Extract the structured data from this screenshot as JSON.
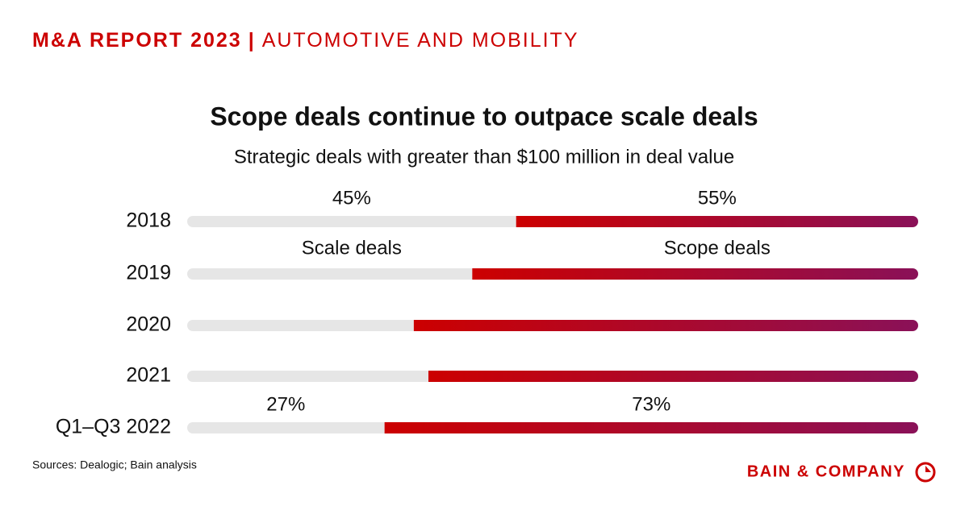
{
  "header": {
    "report": "M&A REPORT 2023",
    "separator": "|",
    "topic": "AUTOMOTIVE AND MOBILITY"
  },
  "footer": {
    "brand": "BAIN & COMPANY"
  },
  "chart_data": {
    "type": "stacked-bar-100",
    "title": "Scope deals continue to outpace scale deals",
    "subtitle": "Strategic deals with greater than $100 million in deal value",
    "source": "Sources: Dealogic; Bain analysis",
    "categories": [
      "2018",
      "2019",
      "2020",
      "2021",
      "Q1–Q3 2022"
    ],
    "xlim": [
      0,
      100
    ],
    "series": [
      {
        "name": "Scale deals",
        "color": "#e6e6e6",
        "values": [
          45,
          39,
          31,
          33,
          27
        ],
        "value_labels": [
          "45%",
          null,
          null,
          null,
          "27%"
        ]
      },
      {
        "name": "Scope deals",
        "color": "#cc0000",
        "color_end": "#8a1158",
        "values": [
          55,
          61,
          69,
          67,
          73
        ],
        "value_labels": [
          "55%",
          null,
          null,
          null,
          "73%"
        ]
      }
    ]
  }
}
